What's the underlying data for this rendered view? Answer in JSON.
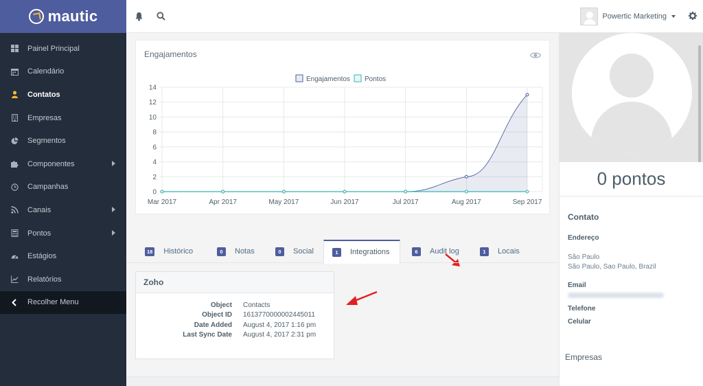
{
  "app": {
    "logo_text": "mautic"
  },
  "sidebar": {
    "items": [
      {
        "label": "Painel Principal",
        "icon": "dashboard-icon",
        "active": false,
        "submenu": false
      },
      {
        "label": "Calendário",
        "icon": "calendar-icon",
        "active": false,
        "submenu": false
      },
      {
        "label": "Contatos",
        "icon": "user-icon",
        "active": true,
        "submenu": false
      },
      {
        "label": "Empresas",
        "icon": "building-icon",
        "active": false,
        "submenu": false
      },
      {
        "label": "Segmentos",
        "icon": "pie-chart-icon",
        "active": false,
        "submenu": false
      },
      {
        "label": "Componentes",
        "icon": "puzzle-icon",
        "active": false,
        "submenu": true
      },
      {
        "label": "Campanhas",
        "icon": "clock-icon",
        "active": false,
        "submenu": false
      },
      {
        "label": "Canais",
        "icon": "rss-icon",
        "active": false,
        "submenu": true
      },
      {
        "label": "Pontos",
        "icon": "calculator-icon",
        "active": false,
        "submenu": true
      },
      {
        "label": "Estágios",
        "icon": "tachometer-icon",
        "active": false,
        "submenu": false
      },
      {
        "label": "Relatórios",
        "icon": "line-chart-icon",
        "active": false,
        "submenu": false
      }
    ],
    "collapse_label": "Recolher Menu"
  },
  "topbar": {
    "user_name": "Powertic Marketing",
    "icons": [
      "bell-icon",
      "search-icon",
      "gear-icon"
    ]
  },
  "chart": {
    "card_title": "Engajamentos"
  },
  "chart_data": {
    "type": "line",
    "title": "Engajamentos",
    "categories": [
      "Mar 2017",
      "Apr 2017",
      "May 2017",
      "Jun 2017",
      "Jul 2017",
      "Aug 2017",
      "Sep 2017"
    ],
    "series": [
      {
        "name": "Engajamentos",
        "values": [
          0,
          0,
          0,
          0,
          0,
          2,
          13
        ],
        "color": "#4e5d9d"
      },
      {
        "name": "Pontos",
        "values": [
          0,
          0,
          0,
          0,
          0,
          0,
          0
        ],
        "color": "#35b5b9"
      }
    ],
    "yticks": [
      0,
      2,
      4,
      6,
      8,
      10,
      12,
      14
    ],
    "ylim": [
      0,
      14
    ],
    "legend": "top-center",
    "grid": true
  },
  "tabs": [
    {
      "count": "18",
      "label": "Histórico",
      "active": false
    },
    {
      "count": "0",
      "label": "Notas",
      "active": false
    },
    {
      "count": "0",
      "label": "Social",
      "active": false
    },
    {
      "count": "1",
      "label": "Integrations",
      "active": true
    },
    {
      "count": "6",
      "label": "Audit log",
      "active": false
    },
    {
      "count": "1",
      "label": "Locais",
      "active": false
    }
  ],
  "integration": {
    "title": "Zoho",
    "rows": [
      {
        "key": "Object",
        "value": "Contacts"
      },
      {
        "key": "Object ID",
        "value": "1613770000002445011"
      },
      {
        "key": "Date Added",
        "value": "August 4, 2017 1:16 pm"
      },
      {
        "key": "Last Sync Date",
        "value": "August 4, 2017 2:31 pm"
      }
    ]
  },
  "contact": {
    "points": "0 pontos",
    "section_title": "Contato",
    "address_label": "Endereço",
    "city": "São Paulo",
    "address_line": "São Paulo, Sao Paulo, Brazil",
    "email_label": "Email",
    "phone_label": "Telefone",
    "mobile_label": "Celular",
    "companies_label": "Empresas"
  }
}
